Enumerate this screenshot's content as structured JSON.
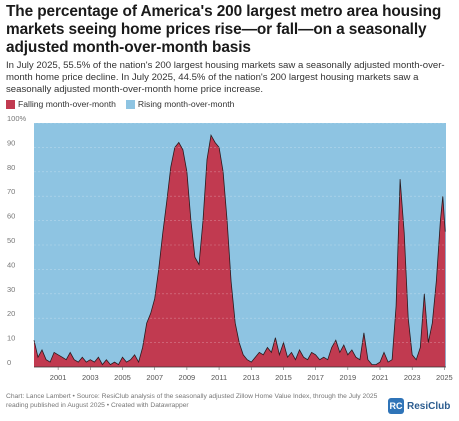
{
  "title": "The percentage of America's 200 largest metro area housing markets seeing home prices rise—or fall—on a seasonally adjusted month-over-month basis",
  "subtitle": "In July 2025, 55.5% of the nation's 200 largest housing markets saw a seasonally adjusted month-over-month home price decline. In July 2025, 44.5% of the nation's 200 largest housing markets saw a seasonally adjusted month-over-month home price increase.",
  "notes": "Chart: Lance Lambert • Source: ResiClub analysis of the seasonally adjusted Zillow Home Value Index, through the July 2025 reading published in August 2025 • Created with Datawrapper",
  "logo": {
    "mark": "RC",
    "text": "ResiClub"
  },
  "colors": {
    "falling": "#c13a50",
    "rising": "#8ec4e2"
  },
  "chart_data": {
    "type": "area",
    "stacked": true,
    "series": [
      {
        "name": "Falling month-over-month",
        "color": "#c13a50"
      },
      {
        "name": "Rising month-over-month",
        "color": "#8ec4e2"
      }
    ],
    "y_tick_labels": [
      "0",
      "10",
      "20",
      "30",
      "40",
      "50",
      "60",
      "70",
      "80",
      "90",
      "100%"
    ],
    "y_ticks": [
      0,
      10,
      20,
      30,
      40,
      50,
      60,
      70,
      80,
      90,
      100
    ],
    "ylim": [
      0,
      100
    ],
    "xlim": [
      2000.0,
      2025.6
    ],
    "x_ticks": [
      "2001",
      "2003",
      "2005",
      "2007",
      "2009",
      "2011",
      "2013",
      "2015",
      "2017",
      "2019",
      "2021",
      "2023",
      "2025"
    ],
    "falling_pct": [
      [
        2000.0,
        11
      ],
      [
        2000.25,
        4
      ],
      [
        2000.5,
        7
      ],
      [
        2000.75,
        3
      ],
      [
        2001.0,
        2
      ],
      [
        2001.25,
        6
      ],
      [
        2001.5,
        5
      ],
      [
        2001.75,
        4
      ],
      [
        2002.0,
        3
      ],
      [
        2002.25,
        6
      ],
      [
        2002.5,
        3
      ],
      [
        2002.75,
        2
      ],
      [
        2003.0,
        4
      ],
      [
        2003.25,
        2
      ],
      [
        2003.5,
        3
      ],
      [
        2003.75,
        2
      ],
      [
        2004.0,
        4
      ],
      [
        2004.25,
        1
      ],
      [
        2004.5,
        3
      ],
      [
        2004.75,
        1
      ],
      [
        2005.0,
        2
      ],
      [
        2005.25,
        1
      ],
      [
        2005.5,
        4
      ],
      [
        2005.75,
        2
      ],
      [
        2006.0,
        3
      ],
      [
        2006.25,
        5
      ],
      [
        2006.5,
        2
      ],
      [
        2006.75,
        8
      ],
      [
        2007.0,
        18
      ],
      [
        2007.25,
        22
      ],
      [
        2007.5,
        28
      ],
      [
        2007.75,
        40
      ],
      [
        2008.0,
        55
      ],
      [
        2008.25,
        68
      ],
      [
        2008.5,
        82
      ],
      [
        2008.75,
        90
      ],
      [
        2009.0,
        92
      ],
      [
        2009.25,
        89
      ],
      [
        2009.5,
        80
      ],
      [
        2009.75,
        60
      ],
      [
        2010.0,
        45
      ],
      [
        2010.25,
        42
      ],
      [
        2010.5,
        60
      ],
      [
        2010.75,
        85
      ],
      [
        2011.0,
        95
      ],
      [
        2011.25,
        92
      ],
      [
        2011.5,
        90
      ],
      [
        2011.75,
        80
      ],
      [
        2012.0,
        60
      ],
      [
        2012.25,
        35
      ],
      [
        2012.5,
        18
      ],
      [
        2012.75,
        10
      ],
      [
        2013.0,
        5
      ],
      [
        2013.25,
        3
      ],
      [
        2013.5,
        2
      ],
      [
        2013.75,
        4
      ],
      [
        2014.0,
        6
      ],
      [
        2014.25,
        5
      ],
      [
        2014.5,
        8
      ],
      [
        2014.75,
        6
      ],
      [
        2015.0,
        12
      ],
      [
        2015.25,
        5
      ],
      [
        2015.5,
        10
      ],
      [
        2015.75,
        4
      ],
      [
        2016.0,
        6
      ],
      [
        2016.25,
        3
      ],
      [
        2016.5,
        7
      ],
      [
        2016.75,
        4
      ],
      [
        2017.0,
        3
      ],
      [
        2017.25,
        6
      ],
      [
        2017.5,
        5
      ],
      [
        2017.75,
        3
      ],
      [
        2018.0,
        4
      ],
      [
        2018.25,
        3
      ],
      [
        2018.5,
        8
      ],
      [
        2018.75,
        11
      ],
      [
        2019.0,
        6
      ],
      [
        2019.25,
        9
      ],
      [
        2019.5,
        5
      ],
      [
        2019.75,
        7
      ],
      [
        2020.0,
        4
      ],
      [
        2020.25,
        3
      ],
      [
        2020.5,
        14
      ],
      [
        2020.75,
        3
      ],
      [
        2021.0,
        1
      ],
      [
        2021.25,
        1
      ],
      [
        2021.5,
        2
      ],
      [
        2021.75,
        6
      ],
      [
        2022.0,
        2
      ],
      [
        2022.25,
        3
      ],
      [
        2022.5,
        25
      ],
      [
        2022.75,
        77
      ],
      [
        2023.0,
        55
      ],
      [
        2023.25,
        20
      ],
      [
        2023.5,
        5
      ],
      [
        2023.75,
        3
      ],
      [
        2024.0,
        8
      ],
      [
        2024.25,
        30
      ],
      [
        2024.5,
        10
      ],
      [
        2024.75,
        18
      ],
      [
        2025.0,
        35
      ],
      [
        2025.25,
        60
      ],
      [
        2025.4,
        70
      ],
      [
        2025.55,
        55.5
      ]
    ]
  }
}
